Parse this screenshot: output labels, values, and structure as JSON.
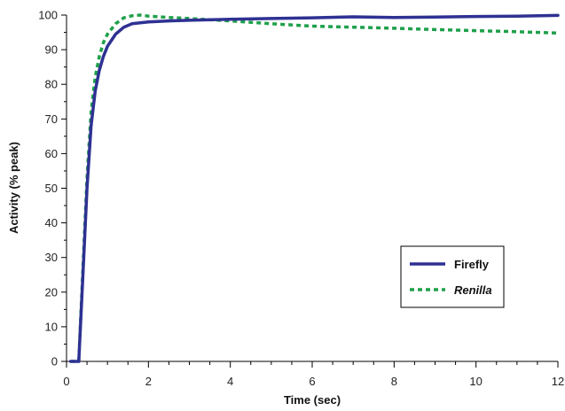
{
  "chart_data": {
    "type": "line",
    "title": "",
    "xlabel": "Time (sec)",
    "ylabel": "Activity (% peak)",
    "xlim": [
      0,
      12
    ],
    "ylim": [
      0,
      100
    ],
    "x_ticks": [
      "0",
      "2",
      "4",
      "6",
      "8",
      "10",
      "12"
    ],
    "y_ticks": [
      "0",
      "10",
      "20",
      "30",
      "40",
      "50",
      "60",
      "70",
      "80",
      "90",
      "100"
    ],
    "grid": false,
    "legend_position": "bottom-right",
    "series": [
      {
        "name": "Firefly",
        "style": "solid",
        "color": "#2e3192",
        "x": [
          0.1,
          0.3,
          0.4,
          0.5,
          0.6,
          0.7,
          0.8,
          0.9,
          1.0,
          1.2,
          1.4,
          1.6,
          2.0,
          2.5,
          3.0,
          4.0,
          5.0,
          6.0,
          7.0,
          8.0,
          9.0,
          10.0,
          11.0,
          12.0
        ],
        "y": [
          0,
          0,
          25,
          50,
          68,
          78,
          84,
          88,
          91,
          94.5,
          96.5,
          97.5,
          98,
          98.3,
          98.5,
          98.8,
          99,
          99.2,
          99.5,
          99.3,
          99.4,
          99.6,
          99.7,
          99.9
        ]
      },
      {
        "name": "Renilla",
        "style": "dashed",
        "color": "#1fa04a",
        "x": [
          0.1,
          0.3,
          0.4,
          0.5,
          0.6,
          0.7,
          0.8,
          0.9,
          1.0,
          1.2,
          1.4,
          1.6,
          1.8,
          2.0,
          2.5,
          3.0,
          4.0,
          5.0,
          6.0,
          7.0,
          8.0,
          9.0,
          10.0,
          11.0,
          12.0
        ],
        "y": [
          0,
          0,
          27,
          53,
          72,
          82,
          88,
          92,
          94.5,
          97.5,
          99.2,
          99.8,
          100,
          99.7,
          99.3,
          99,
          98.3,
          97.5,
          96.8,
          96.5,
          96.2,
          95.8,
          95.5,
          95.2,
          94.8
        ]
      }
    ]
  }
}
